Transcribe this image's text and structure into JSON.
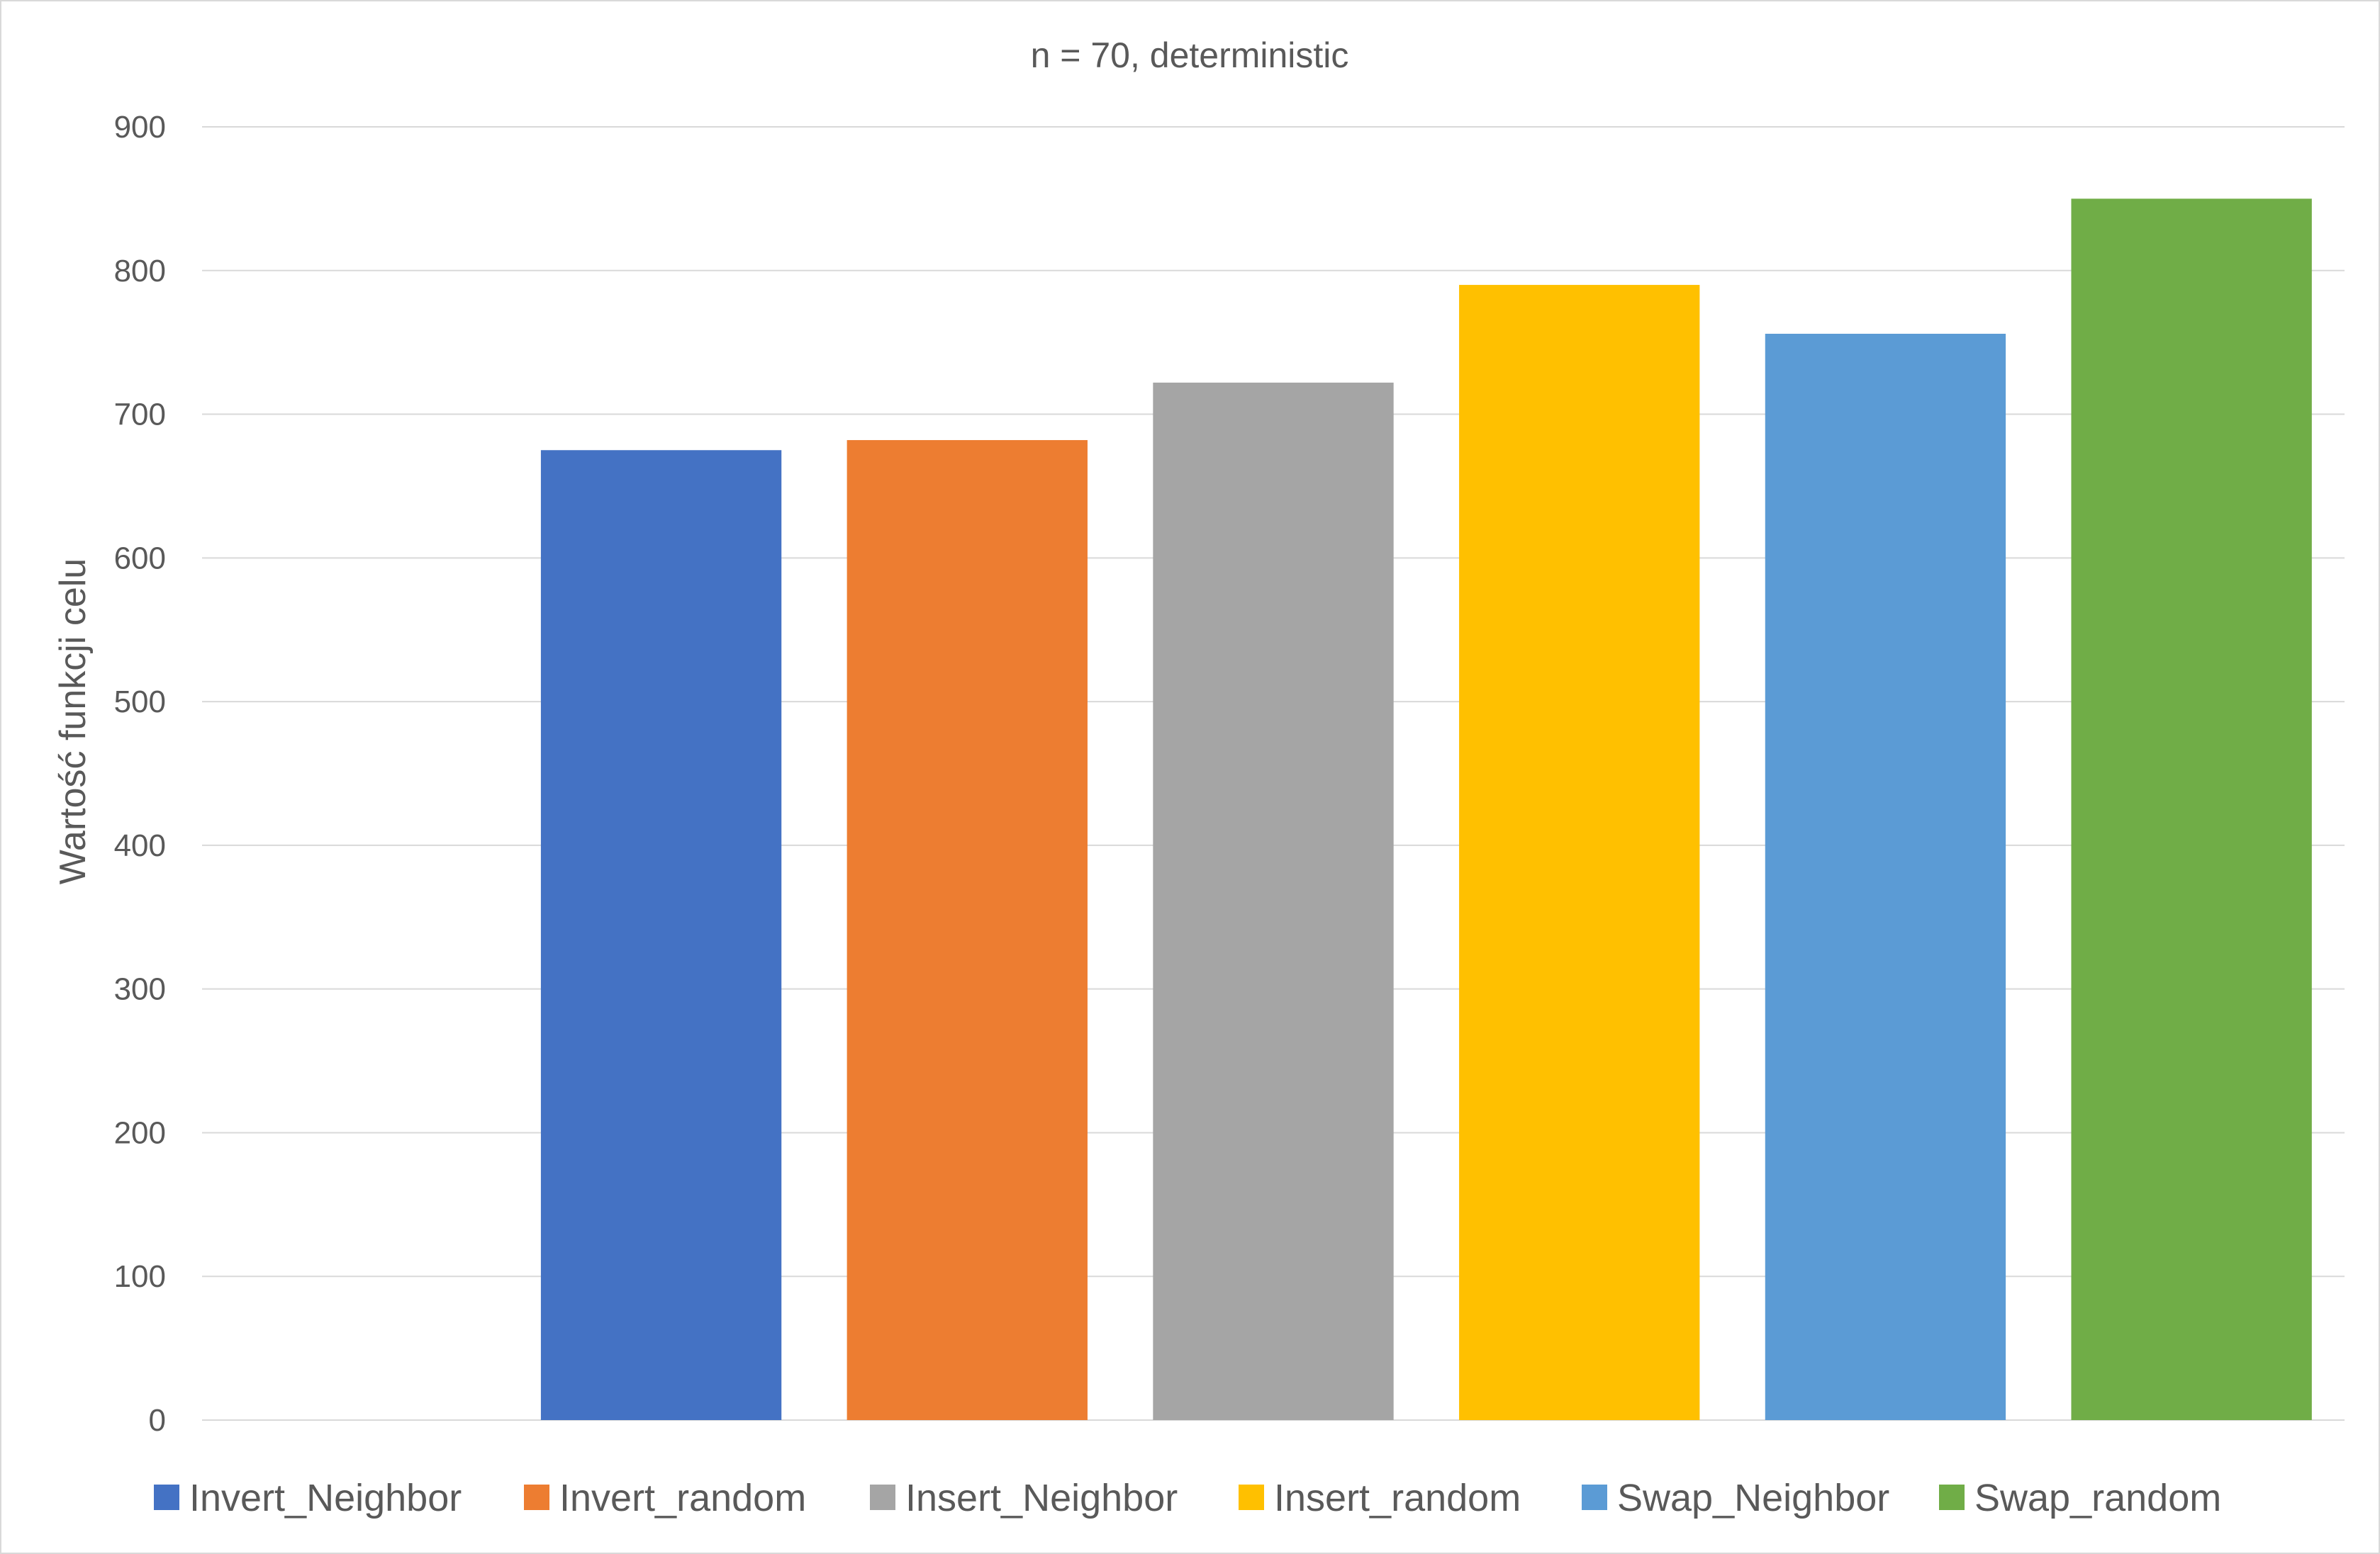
{
  "chart_data": {
    "type": "bar",
    "title": "n = 70, deterministic",
    "xlabel": "",
    "ylabel": "Wartość funkcji celu",
    "ylim": [
      0,
      900
    ],
    "yticks": [
      0,
      100,
      200,
      300,
      400,
      500,
      600,
      700,
      800,
      900
    ],
    "grid": true,
    "legend_position": "bottom",
    "series": [
      {
        "name": "Invert_Neighbor",
        "value": 675,
        "color": "#4472C4"
      },
      {
        "name": "Invert_random",
        "value": 682,
        "color": "#ED7D31"
      },
      {
        "name": "Insert_Neighbor",
        "value": 722,
        "color": "#A5A5A5"
      },
      {
        "name": "Insert_random",
        "value": 790,
        "color": "#FFC000"
      },
      {
        "name": "Swap_Neighbor",
        "value": 756,
        "color": "#5B9BD5"
      },
      {
        "name": "Swap_random",
        "value": 850,
        "color": "#70AD47"
      }
    ]
  }
}
